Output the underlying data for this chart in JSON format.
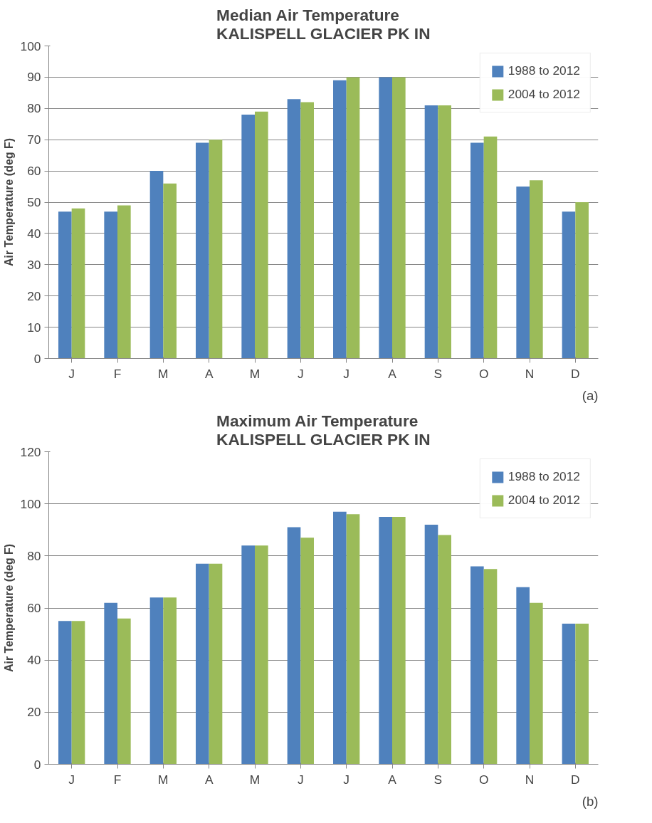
{
  "chart_data": [
    {
      "type": "bar",
      "title": "Median Air Temperature\nKALISPELL GLACIER PK IN",
      "ylabel": "Air Temperature (deg F)",
      "categories": [
        "J",
        "F",
        "M",
        "A",
        "M",
        "J",
        "J",
        "A",
        "S",
        "O",
        "N",
        "D"
      ],
      "series": [
        {
          "name": "1988 to 2012",
          "color": "#4f81bd",
          "values": [
            47,
            47,
            60,
            69,
            78,
            83,
            89,
            90,
            81,
            69,
            55,
            47
          ]
        },
        {
          "name": "2004 to 2012",
          "color": "#9bbb59",
          "values": [
            48,
            49,
            56,
            70,
            79,
            82,
            90,
            90,
            81,
            71,
            57,
            50
          ]
        }
      ],
      "ylim": [
        0,
        100
      ],
      "yticks": [
        0,
        10,
        20,
        30,
        40,
        50,
        60,
        70,
        80,
        90,
        100
      ],
      "grid": "y",
      "legend": "top right",
      "annotations": [
        "(a)"
      ]
    },
    {
      "type": "bar",
      "title": "Maximum Air Temperature\nKALISPELL GLACIER PK IN",
      "ylabel": "Air Temperature (deg F)",
      "categories": [
        "J",
        "F",
        "M",
        "A",
        "M",
        "J",
        "J",
        "A",
        "S",
        "O",
        "N",
        "D"
      ],
      "series": [
        {
          "name": "1988 to 2012",
          "color": "#4f81bd",
          "values": [
            55,
            62,
            64,
            77,
            84,
            91,
            97,
            95,
            92,
            76,
            68,
            54
          ]
        },
        {
          "name": "2004 to 2012",
          "color": "#9bbb59",
          "values": [
            55,
            56,
            64,
            77,
            84,
            87,
            96,
            95,
            88,
            75,
            62,
            54
          ]
        }
      ],
      "ylim": [
        0,
        120
      ],
      "yticks": [
        0,
        20,
        40,
        60,
        80,
        100,
        120
      ],
      "grid": "y",
      "legend": "top right",
      "annotations": [
        "(b)"
      ]
    }
  ]
}
